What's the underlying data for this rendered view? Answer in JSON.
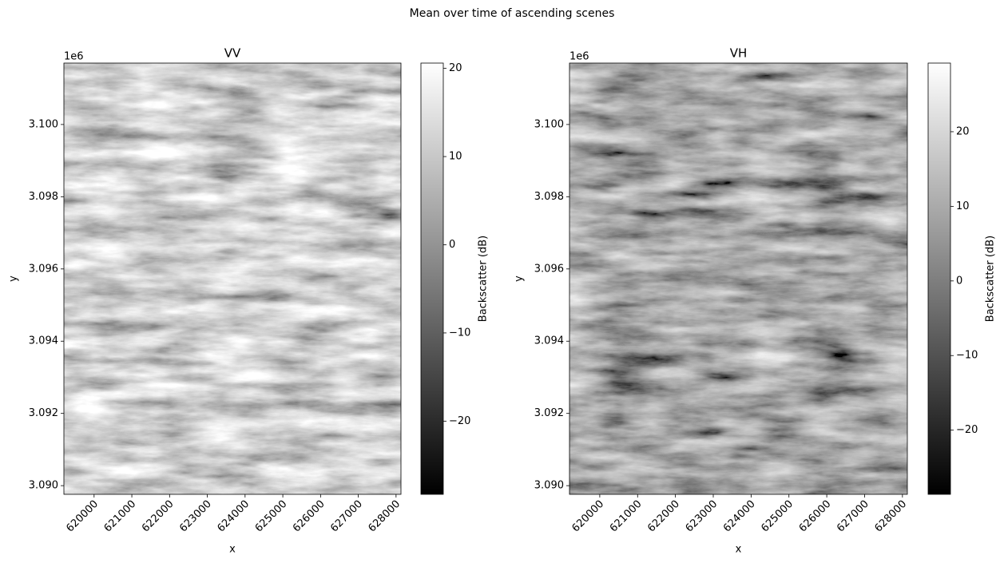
{
  "title": "Mean over time of ascending scenes",
  "chart_data": [
    {
      "type": "image",
      "title": "VV",
      "xlabel": "x",
      "ylabel": "y",
      "cmap": "gray",
      "xlim": [
        619200,
        628130
      ],
      "ylim": [
        3089760,
        3101700
      ],
      "xticks": [
        620000,
        621000,
        622000,
        623000,
        624000,
        625000,
        626000,
        627000,
        628000
      ],
      "yticks": [
        {
          "value": 3090000,
          "label": "3.090"
        },
        {
          "value": 3092000,
          "label": "3.092"
        },
        {
          "value": 3094000,
          "label": "3.094"
        },
        {
          "value": 3096000,
          "label": "3.096"
        },
        {
          "value": 3098000,
          "label": "3.098"
        },
        {
          "value": 3100000,
          "label": "3.100"
        }
      ],
      "y_offset_label": "1e6",
      "colorbar": {
        "label": "Backscatter (dB)",
        "lim": [
          -28.3,
          20.6
        ],
        "ticks": [
          {
            "value": -20,
            "label": "−20"
          },
          {
            "value": -10,
            "label": "−10"
          },
          0,
          10,
          20
        ]
      }
    },
    {
      "type": "image",
      "title": "VH",
      "xlabel": "x",
      "ylabel": "y",
      "cmap": "gray",
      "xlim": [
        619200,
        628130
      ],
      "ylim": [
        3089760,
        3101700
      ],
      "xticks": [
        620000,
        621000,
        622000,
        623000,
        624000,
        625000,
        626000,
        627000,
        628000
      ],
      "yticks": [
        {
          "value": 3090000,
          "label": "3.090"
        },
        {
          "value": 3092000,
          "label": "3.092"
        },
        {
          "value": 3094000,
          "label": "3.094"
        },
        {
          "value": 3096000,
          "label": "3.096"
        },
        {
          "value": 3098000,
          "label": "3.098"
        },
        {
          "value": 3100000,
          "label": "3.100"
        }
      ],
      "y_offset_label": "1e6",
      "colorbar": {
        "label": "Backscatter (dB)",
        "lim": [
          -28.6,
          29.2
        ],
        "ticks": [
          {
            "value": -20,
            "label": "−20"
          },
          {
            "value": -10,
            "label": "−10"
          },
          0,
          10,
          20
        ]
      }
    }
  ]
}
